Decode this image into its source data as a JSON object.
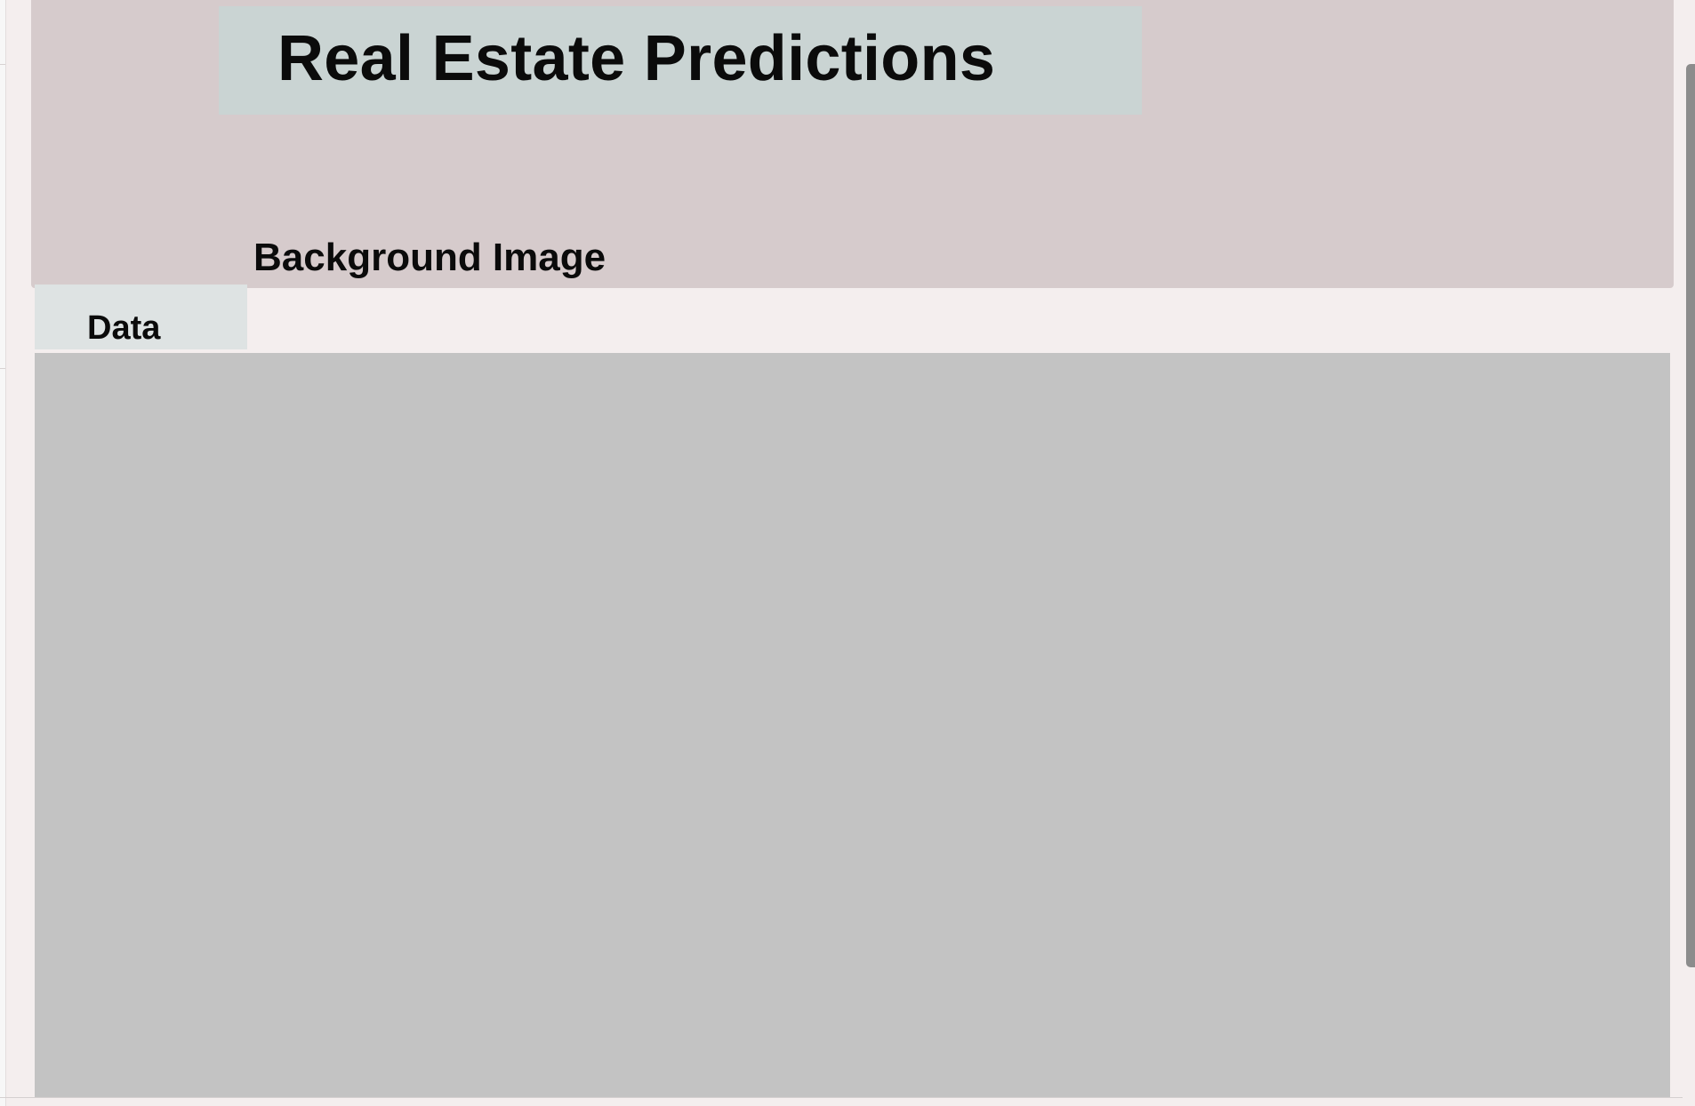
{
  "header": {
    "title": "Real Estate Predictions",
    "subtitle": "Background Image"
  },
  "tabs": [
    {
      "label": "Data",
      "active": true
    }
  ],
  "colors": {
    "page_background": "#f4eeee",
    "header_background": "#d6cbcc",
    "title_box": "#cad4d3",
    "tab_background": "#dee3e3",
    "content_background": "#c3c3c3",
    "text": "#0b0b0b",
    "scrollbar_thumb": "#8c8c8c"
  }
}
